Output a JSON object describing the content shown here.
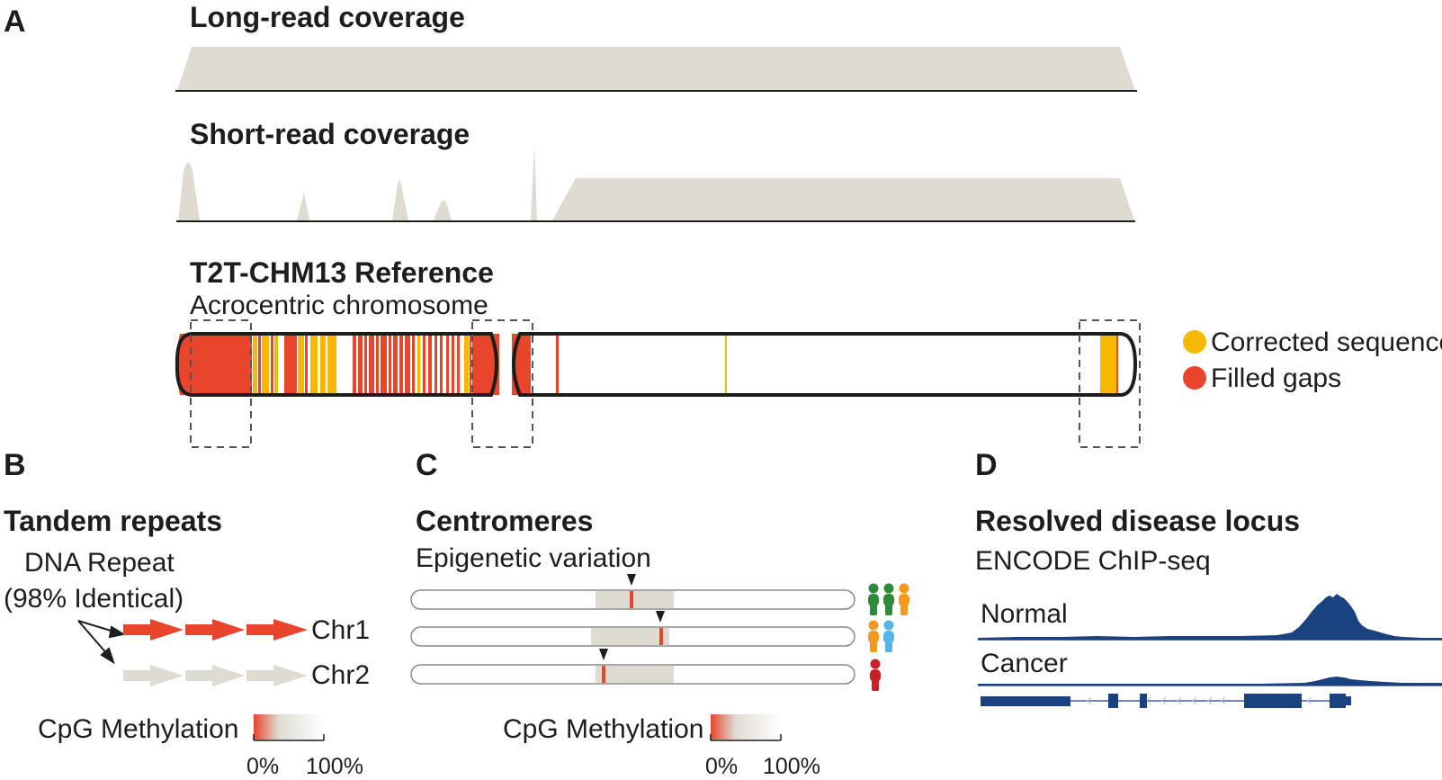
{
  "panel_a": {
    "letter": "A",
    "long_read_title": "Long-read coverage",
    "short_read_title": "Short-read coverage",
    "reference_title": "T2T-CHM13 Reference",
    "reference_subtitle": "Acrocentric chromosome",
    "legend": {
      "corrected": "Corrected sequence",
      "filled": "Filled gaps",
      "corrected_color": "#f6b800",
      "filled_color": "#e8452c"
    }
  },
  "panel_b": {
    "letter": "B",
    "title": "Tandem repeats",
    "repeat_label_line1": "DNA Repeat",
    "repeat_label_line2": "(98% Identical)",
    "chr1": "Chr1",
    "chr2": "Chr2",
    "methylation_label": "CpG Methylation",
    "scale_min": "0%",
    "scale_max": "100%"
  },
  "panel_c": {
    "letter": "C",
    "title": "Centromeres",
    "subtitle": "Epigenetic variation",
    "methylation_label": "CpG Methylation",
    "scale_min": "0%",
    "scale_max": "100%"
  },
  "panel_d": {
    "letter": "D",
    "title": "Resolved disease locus",
    "subtitle": "ENCODE ChIP-seq",
    "track_normal": "Normal",
    "track_cancer": "Cancer"
  },
  "colors": {
    "coverage_fill": "#dedbd2",
    "gap_red": "#e8452c",
    "corrected_yellow": "#f6b800",
    "chip_blue": "#1a4180",
    "person_green": "#2e8b3a",
    "person_orange": "#f39a1e",
    "person_lightblue": "#56b4e6",
    "person_darkred": "#c8202a"
  }
}
